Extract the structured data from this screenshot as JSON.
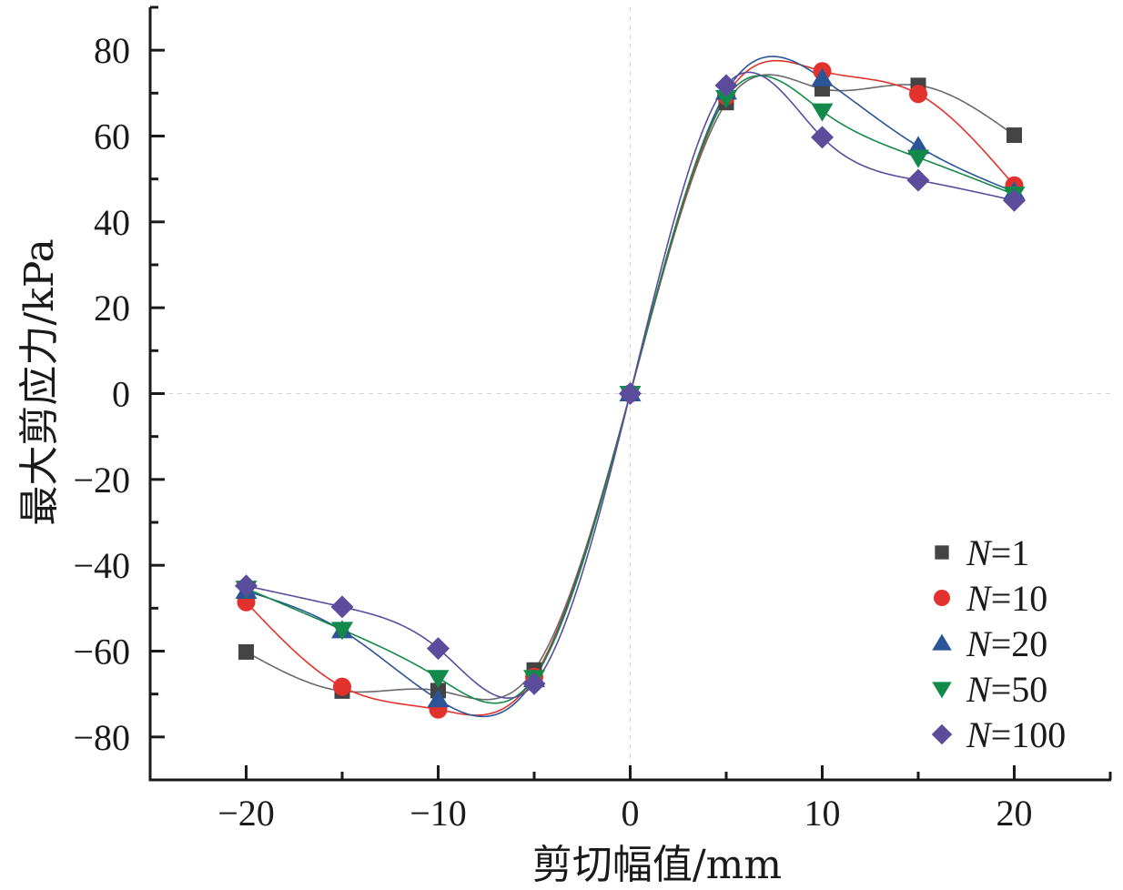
{
  "chart_data": {
    "type": "scatter",
    "title": "",
    "xlabel": "剪切幅值/mm",
    "ylabel": "最大剪应力/kPa",
    "xlim": [
      -25,
      25
    ],
    "ylim": [
      -90,
      90
    ],
    "x_ticks": [
      -20,
      -10,
      0,
      10,
      20
    ],
    "x_tick_labels": [
      "−20",
      "−10",
      "0",
      "10",
      "20"
    ],
    "x_minor_ticks": [
      -25,
      -15,
      -5,
      5,
      15,
      25
    ],
    "y_ticks": [
      -80,
      -60,
      -40,
      -20,
      0,
      20,
      40,
      60,
      80
    ],
    "y_tick_labels": [
      "−80",
      "−60",
      "−40",
      "−20",
      "0",
      "20",
      "40",
      "60",
      "80"
    ],
    "y_minor_ticks": [
      -90,
      -70,
      -50,
      -30,
      -10,
      10,
      30,
      50,
      70,
      90
    ],
    "grid": false,
    "reference_lines": {
      "x": 0,
      "y": 0,
      "style": "dashed"
    },
    "fit_curves": "smooth spline through points",
    "legend_position": "bottom-right",
    "x": [
      -20,
      -15,
      -10,
      -5,
      0,
      5,
      10,
      15,
      20
    ],
    "series": [
      {
        "name": "N=1",
        "label_var": "N",
        "label_value": "=1",
        "marker": "square",
        "color": "#444444",
        "line_color": "#6a6a6a",
        "values": [
          -60.2,
          -69.3,
          -69.2,
          -64.4,
          0,
          67.8,
          71.0,
          71.8,
          60.2
        ]
      },
      {
        "name": "N=10",
        "label_var": "N",
        "label_value": "=10",
        "marker": "circle",
        "color": "#e3322d",
        "line_color": "#e3322d",
        "values": [
          -48.6,
          -68.3,
          -73.6,
          -66.0,
          0,
          69.3,
          75.1,
          69.8,
          48.5
        ]
      },
      {
        "name": "N=20",
        "label_var": "N",
        "label_value": "=20",
        "marker": "triangle-up",
        "color": "#2b5597",
        "line_color": "#2b5597",
        "values": [
          -46.0,
          -55.2,
          -71.3,
          -66.6,
          0,
          70.3,
          73.4,
          57.6,
          47.0
        ]
      },
      {
        "name": "N=50",
        "label_var": "N",
        "label_value": "=50",
        "marker": "triangle-down",
        "color": "#138a4a",
        "line_color": "#138a4a",
        "values": [
          -45.4,
          -55.0,
          -66.2,
          -66.2,
          0,
          68.9,
          65.8,
          55.0,
          46.4
        ]
      },
      {
        "name": "N=100",
        "label_var": "N",
        "label_value": "=100",
        "marker": "diamond",
        "color": "#5c4c9c",
        "line_color": "#5c4c9c",
        "values": [
          -44.8,
          -49.7,
          -59.4,
          -67.6,
          0,
          71.8,
          59.7,
          49.7,
          45.0
        ]
      }
    ]
  }
}
